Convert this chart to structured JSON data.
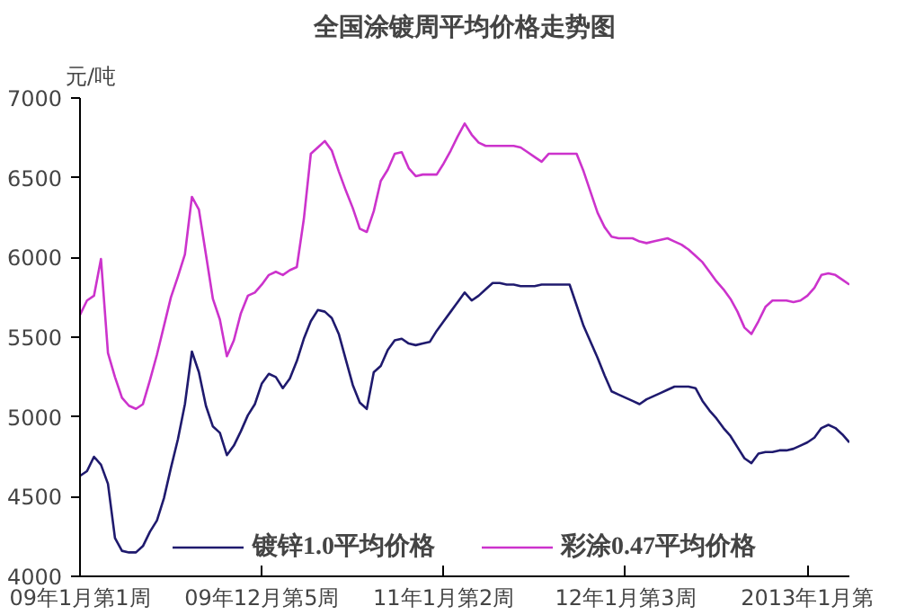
{
  "chart_data": {
    "type": "line",
    "title": "全国涂镀周平均价格走势图",
    "ylabel": "元/吨",
    "categories": [
      "09年1月第1周",
      null,
      null,
      null,
      null,
      null,
      null,
      null,
      null,
      null,
      null,
      null,
      null,
      null,
      null,
      null,
      null,
      null,
      null,
      null,
      null,
      null,
      null,
      null,
      null,
      null,
      "09年12月第5周",
      null,
      null,
      null,
      null,
      null,
      null,
      null,
      null,
      null,
      null,
      null,
      null,
      null,
      null,
      null,
      null,
      null,
      null,
      null,
      null,
      null,
      null,
      null,
      null,
      null,
      "11年1月第2周",
      null,
      null,
      null,
      null,
      null,
      null,
      null,
      null,
      null,
      null,
      null,
      null,
      null,
      null,
      null,
      null,
      null,
      null,
      null,
      null,
      null,
      null,
      null,
      null,
      null,
      "12年1月第3周",
      null,
      null,
      null,
      null,
      null,
      null,
      null,
      null,
      null,
      null,
      null,
      null,
      null,
      null,
      null,
      null,
      null,
      null,
      null,
      null,
      null,
      null,
      null,
      null,
      null,
      "2013年1月第",
      null,
      null,
      null,
      null,
      null,
      null
    ],
    "ylim": [
      4000,
      7000
    ],
    "yticks": [
      4000,
      4500,
      5000,
      5500,
      6000,
      6500,
      7000
    ],
    "grid": false,
    "legend": "bottom",
    "line_style": "solid",
    "marker": "none",
    "series": [
      {
        "name": "镀锌1.0平均价格",
        "color": "#1f1a6e",
        "values": [
          4630,
          4660,
          4750,
          4700,
          4580,
          4240,
          4160,
          4150,
          4150,
          4190,
          4280,
          4350,
          4490,
          4680,
          4860,
          5080,
          5410,
          5280,
          5070,
          4940,
          4900,
          4760,
          4820,
          4910,
          5010,
          5080,
          5210,
          5270,
          5250,
          5180,
          5240,
          5350,
          5490,
          5600,
          5670,
          5660,
          5620,
          5520,
          5360,
          5200,
          5090,
          5050,
          5280,
          5320,
          5420,
          5480,
          5490,
          5460,
          5450,
          5460,
          5470,
          5540,
          5600,
          5660,
          5720,
          5780,
          5730,
          5760,
          5800,
          5840,
          5840,
          5830,
          5830,
          5820,
          5820,
          5820,
          5830,
          5830,
          5830,
          5830,
          5830,
          5700,
          5570,
          5470,
          5370,
          5260,
          5160,
          5140,
          5120,
          5100,
          5080,
          5110,
          5130,
          5150,
          5170,
          5190,
          5190,
          5190,
          5180,
          5100,
          5040,
          4990,
          4930,
          4880,
          4810,
          4740,
          4710,
          4770,
          4780,
          4780,
          4790,
          4790,
          4800,
          4820,
          4840,
          4870,
          4930,
          4950,
          4930,
          4890,
          4840
        ]
      },
      {
        "name": "彩涂0.47平均价格",
        "color": "#cc33cc",
        "values": [
          5640,
          5730,
          5760,
          5990,
          5400,
          5250,
          5120,
          5070,
          5050,
          5080,
          5230,
          5390,
          5570,
          5750,
          5880,
          6020,
          6380,
          6300,
          6020,
          5740,
          5610,
          5380,
          5480,
          5650,
          5760,
          5780,
          5830,
          5890,
          5910,
          5890,
          5920,
          5940,
          6240,
          6650,
          6690,
          6730,
          6670,
          6540,
          6420,
          6310,
          6180,
          6160,
          6290,
          6480,
          6550,
          6650,
          6660,
          6560,
          6510,
          6520,
          6520,
          6520,
          6590,
          6670,
          6760,
          6840,
          6770,
          6720,
          6700,
          6700,
          6700,
          6700,
          6700,
          6690,
          6660,
          6630,
          6600,
          6650,
          6650,
          6650,
          6650,
          6650,
          6540,
          6410,
          6280,
          6190,
          6130,
          6120,
          6120,
          6120,
          6100,
          6090,
          6100,
          6110,
          6120,
          6100,
          6080,
          6050,
          6010,
          5970,
          5910,
          5850,
          5800,
          5740,
          5660,
          5560,
          5520,
          5600,
          5690,
          5730,
          5730,
          5730,
          5720,
          5730,
          5760,
          5810,
          5890,
          5900,
          5890,
          5860,
          5830
        ]
      }
    ]
  }
}
